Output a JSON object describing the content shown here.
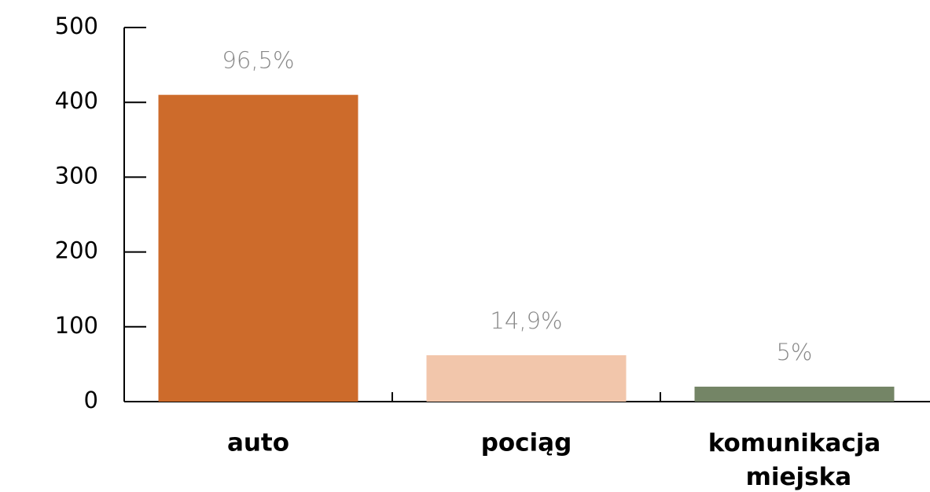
{
  "chart_data": {
    "type": "bar",
    "categories": [
      "auto",
      "pociąg",
      "komunikacja miejska"
    ],
    "values": [
      410,
      62,
      20
    ],
    "colors": [
      "#cd6b2b",
      "#f2c6ab",
      "#748566"
    ],
    "annotations": [
      "96,5%",
      "14,9%",
      "5%"
    ],
    "ylim": [
      0,
      500
    ],
    "yticks": [
      0,
      100,
      200,
      300,
      400,
      500
    ],
    "grid": false
  }
}
